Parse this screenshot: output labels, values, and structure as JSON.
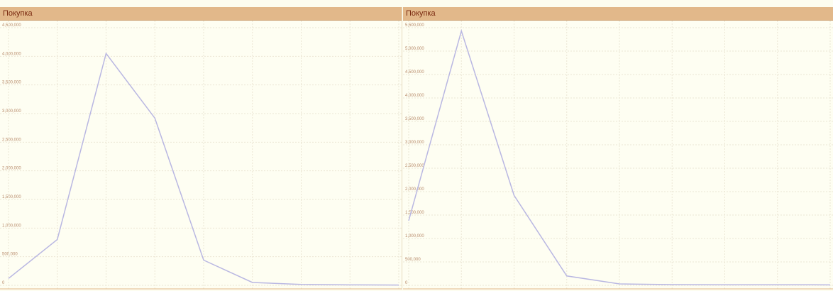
{
  "panels": [
    {
      "header": "Покупка",
      "color_header_bg": "#e2b88a",
      "color_series": "#b9b7e2"
    },
    {
      "header": "Покупка",
      "color_header_bg": "#e2b88a",
      "color_series": "#b9b7e2"
    }
  ],
  "chart_data": [
    {
      "type": "line",
      "title": "",
      "xlabel": "",
      "ylabel": "",
      "ylim": [
        0,
        4500000
      ],
      "yticks": [
        "0",
        "500,000",
        "1,000,000",
        "1,500,000",
        "2,000,000",
        "2,500,000",
        "3,000,000",
        "3,500,000",
        "4,000,000",
        "4,500,000"
      ],
      "ytick_values": [
        0,
        500000,
        1000000,
        1500000,
        2000000,
        2500000,
        3000000,
        3500000,
        4000000,
        4500000
      ],
      "grid": true,
      "x": [
        0,
        1,
        2,
        3,
        4,
        5,
        6,
        7,
        8
      ],
      "series": [
        {
          "values": [
            120000,
            800000,
            4050000,
            2920000,
            440000,
            50000,
            15000,
            8000,
            5000
          ]
        }
      ]
    },
    {
      "type": "line",
      "title": "",
      "xlabel": "",
      "ylabel": "",
      "ylim": [
        0,
        5500000
      ],
      "yticks": [
        "0",
        "500,000",
        "1,000,000",
        "1,500,000",
        "2,000,000",
        "2,500,000",
        "3,000,000",
        "3,500,000",
        "4,000,000",
        "4,500,000",
        "5,000,000",
        "5,500,000"
      ],
      "ytick_values": [
        0,
        500000,
        1000000,
        1500000,
        2000000,
        2500000,
        3000000,
        3500000,
        4000000,
        4500000,
        5000000,
        5500000
      ],
      "grid": true,
      "x": [
        0,
        1,
        2,
        3,
        4,
        5,
        6,
        7,
        8
      ],
      "series": [
        {
          "values": [
            1380000,
            5430000,
            1920000,
            200000,
            30000,
            15000,
            12000,
            12000,
            10000
          ]
        }
      ]
    }
  ]
}
